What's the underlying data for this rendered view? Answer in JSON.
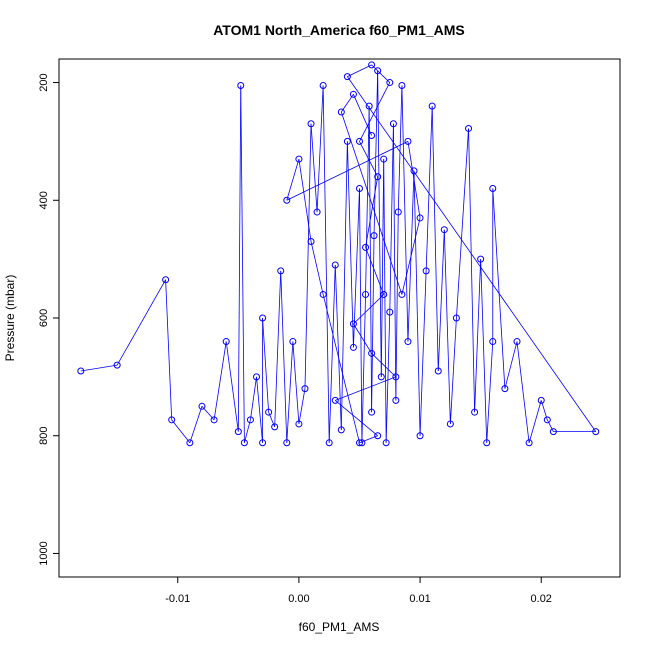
{
  "chart_data": {
    "type": "scatter",
    "title": "ATOM1 North_America f60_PM1_AMS",
    "xlabel": "f60_PM1_AMS",
    "ylabel": "Pressure (mbar)",
    "xlim": [
      -0.0198,
      0.0265
    ],
    "ylim": [
      1040,
      160
    ],
    "y_reversed": true,
    "x_ticks": [
      -0.01,
      0.0,
      0.01,
      0.02
    ],
    "x_tick_labels": [
      "-0.01",
      "0.00",
      "0.01",
      "0.02"
    ],
    "y_ticks": [
      200,
      400,
      600,
      800,
      1000
    ],
    "y_tick_labels": [
      "200",
      "400",
      "600",
      "800",
      "1000"
    ],
    "series_color": "#0000ff",
    "marker": "open-circle",
    "connected": true,
    "grid": false,
    "points": [
      [
        -0.018,
        690
      ],
      [
        -0.015,
        680
      ],
      [
        -0.011,
        535
      ],
      [
        -0.0105,
        773
      ],
      [
        -0.009,
        812
      ],
      [
        -0.008,
        750
      ],
      [
        -0.007,
        773
      ],
      [
        -0.006,
        640
      ],
      [
        -0.005,
        793
      ],
      [
        -0.0048,
        205
      ],
      [
        -0.0045,
        812
      ],
      [
        -0.004,
        773
      ],
      [
        -0.0035,
        700
      ],
      [
        -0.003,
        812
      ],
      [
        -0.003,
        600
      ],
      [
        -0.0025,
        760
      ],
      [
        -0.002,
        785
      ],
      [
        -0.0015,
        520
      ],
      [
        -0.001,
        812
      ],
      [
        -0.0005,
        640
      ],
      [
        0.0,
        780
      ],
      [
        0.0005,
        720
      ],
      [
        0.001,
        270
      ],
      [
        0.0015,
        420
      ],
      [
        0.002,
        205
      ],
      [
        0.0025,
        812
      ],
      [
        0.003,
        510
      ],
      [
        0.0035,
        790
      ],
      [
        0.004,
        300
      ],
      [
        0.0045,
        650
      ],
      [
        0.005,
        380
      ],
      [
        0.0052,
        812
      ],
      [
        0.0055,
        560
      ],
      [
        0.0058,
        240
      ],
      [
        0.006,
        760
      ],
      [
        0.0062,
        460
      ],
      [
        0.0065,
        180
      ],
      [
        0.0068,
        700
      ],
      [
        0.007,
        330
      ],
      [
        0.0072,
        812
      ],
      [
        0.0075,
        590
      ],
      [
        0.0078,
        270
      ],
      [
        0.008,
        740
      ],
      [
        0.0082,
        420
      ],
      [
        0.0085,
        205
      ],
      [
        0.009,
        640
      ],
      [
        0.0095,
        350
      ],
      [
        0.01,
        800
      ],
      [
        0.0105,
        520
      ],
      [
        0.011,
        240
      ],
      [
        0.0115,
        690
      ],
      [
        0.012,
        450
      ],
      [
        0.0125,
        780
      ],
      [
        0.013,
        600
      ],
      [
        0.014,
        278
      ],
      [
        0.0145,
        760
      ],
      [
        0.015,
        500
      ],
      [
        0.0155,
        812
      ],
      [
        0.016,
        640
      ],
      [
        0.016,
        380
      ],
      [
        0.017,
        720
      ],
      [
        0.018,
        640
      ],
      [
        0.019,
        812
      ],
      [
        0.02,
        740
      ],
      [
        0.0205,
        773
      ],
      [
        0.021,
        793
      ],
      [
        0.0245,
        793
      ],
      [
        0.004,
        190
      ],
      [
        0.006,
        170
      ],
      [
        0.0075,
        200
      ],
      [
        0.005,
        300
      ],
      [
        0.0065,
        360
      ],
      [
        0.0055,
        480
      ],
      [
        0.007,
        560
      ],
      [
        0.0045,
        610
      ],
      [
        0.006,
        660
      ],
      [
        0.008,
        700
      ],
      [
        0.003,
        740
      ],
      [
        0.0065,
        800
      ],
      [
        0.005,
        812
      ],
      [
        0.002,
        560
      ],
      [
        0.001,
        470
      ],
      [
        0.0,
        330
      ],
      [
        -0.001,
        400
      ],
      [
        0.009,
        300
      ],
      [
        0.01,
        430
      ],
      [
        0.0085,
        560
      ],
      [
        0.0035,
        250
      ],
      [
        0.0045,
        220
      ],
      [
        0.006,
        290
      ]
    ]
  }
}
